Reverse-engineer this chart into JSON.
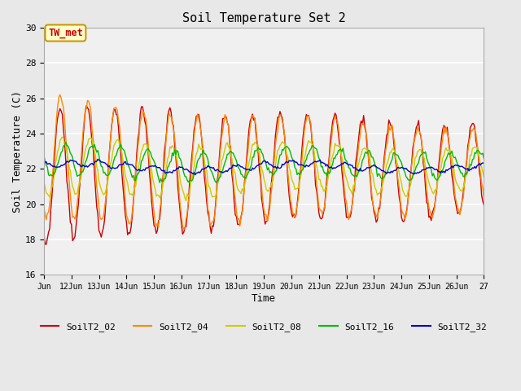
{
  "title": "Soil Temperature Set 2",
  "xlabel": "Time",
  "ylabel": "Soil Temperature (C)",
  "ylim": [
    16,
    30
  ],
  "series_colors": {
    "SoilT2_02": "#cc0000",
    "SoilT2_04": "#ff8800",
    "SoilT2_08": "#cccc00",
    "SoilT2_16": "#00bb00",
    "SoilT2_32": "#0000cc"
  },
  "tick_labels": [
    "Jun",
    "12Jun",
    "13Jun",
    "14Jun",
    "15Jun",
    "16Jun",
    "17Jun",
    "18Jun",
    "19Jun",
    "20Jun",
    "21Jun",
    "22Jun",
    "23Jun",
    "24Jun",
    "25Jun",
    "26Jun",
    "27"
  ],
  "yticks": [
    16,
    18,
    20,
    22,
    24,
    26,
    28,
    30
  ],
  "fig_bg": "#e8e8e8",
  "ax_bg": "#f0f0f0",
  "annotation_text": "TW_met",
  "annotation_fg": "#cc0000",
  "annotation_bg": "#ffffcc",
  "annotation_border": "#cc9900",
  "legend_labels": [
    "SoilT2_02",
    "SoilT2_04",
    "SoilT2_08",
    "SoilT2_16",
    "SoilT2_32"
  ],
  "legend_colors": [
    "#cc0000",
    "#ff8800",
    "#cccc00",
    "#00bb00",
    "#0000cc"
  ],
  "linewidth": 1.0
}
